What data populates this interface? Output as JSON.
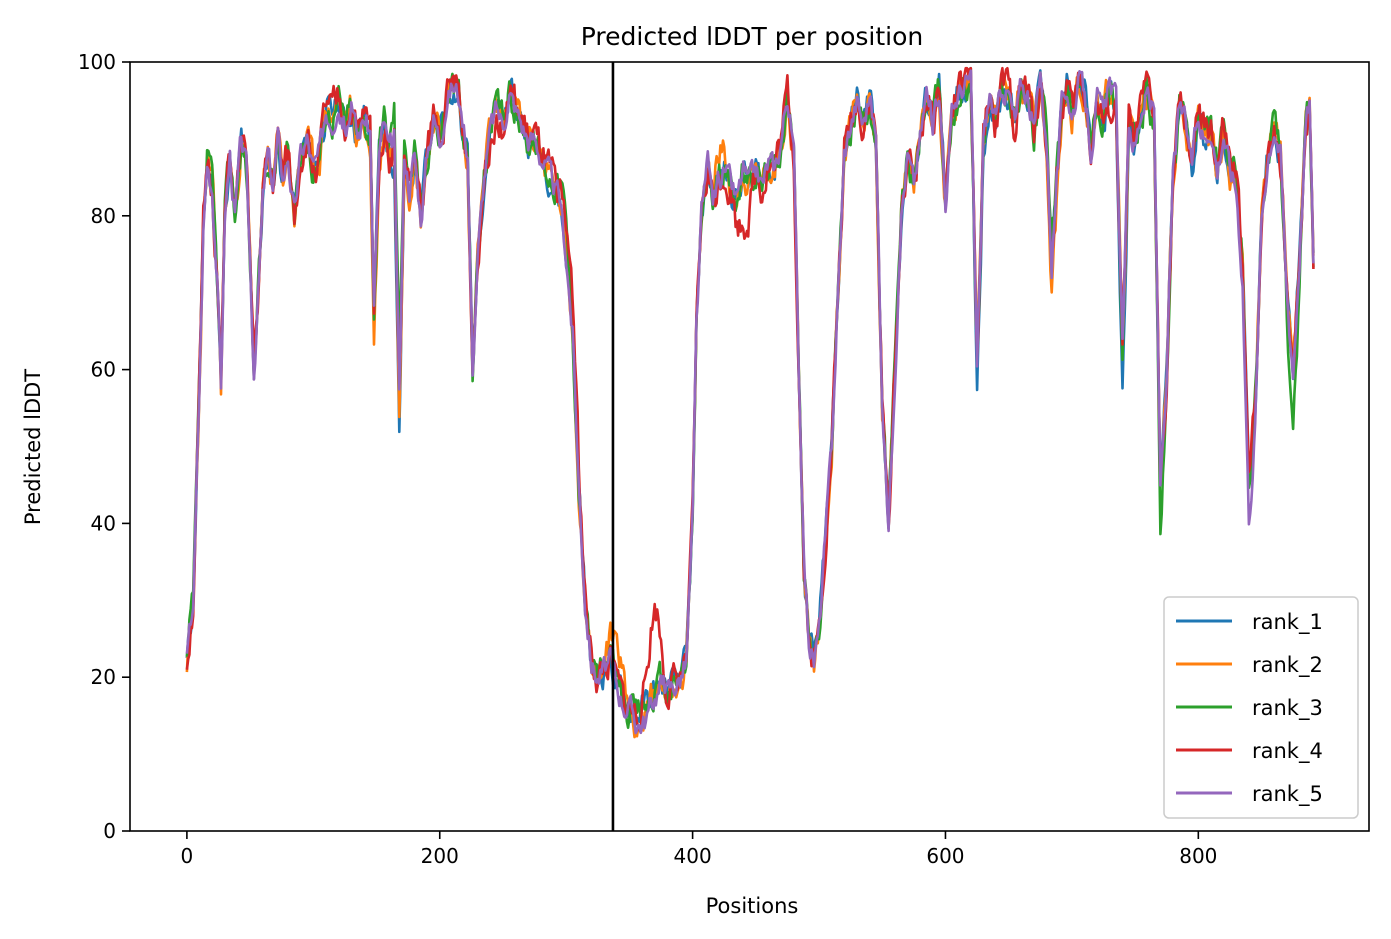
{
  "chart_data": {
    "type": "line",
    "title": "Predicted lDDT per position",
    "xlabel": "Positions",
    "ylabel": "Predicted lDDT",
    "xlim": [
      -45,
      935
    ],
    "ylim": [
      0,
      100
    ],
    "xticks": [
      0,
      200,
      400,
      600,
      800
    ],
    "yticks": [
      0,
      20,
      40,
      60,
      80,
      100
    ],
    "grid": false,
    "legend": "bottom-right",
    "vline": 337,
    "base": [
      [
        0,
        22
      ],
      [
        5,
        30
      ],
      [
        10,
        58
      ],
      [
        13,
        78
      ],
      [
        16,
        87
      ],
      [
        20,
        84
      ],
      [
        24,
        72
      ],
      [
        27,
        58
      ],
      [
        30,
        80
      ],
      [
        34,
        88
      ],
      [
        38,
        80
      ],
      [
        43,
        90
      ],
      [
        47,
        86
      ],
      [
        50,
        74
      ],
      [
        53,
        60
      ],
      [
        57,
        72
      ],
      [
        60,
        82
      ],
      [
        64,
        88
      ],
      [
        68,
        84
      ],
      [
        72,
        90
      ],
      [
        76,
        85
      ],
      [
        80,
        88
      ],
      [
        85,
        80
      ],
      [
        90,
        88
      ],
      [
        95,
        90
      ],
      [
        100,
        86
      ],
      [
        105,
        88
      ],
      [
        110,
        94
      ],
      [
        115,
        93
      ],
      [
        120,
        95
      ],
      [
        125,
        92
      ],
      [
        130,
        94
      ],
      [
        135,
        90
      ],
      [
        140,
        93
      ],
      [
        145,
        91
      ],
      [
        148,
        68
      ],
      [
        152,
        88
      ],
      [
        156,
        92
      ],
      [
        160,
        88
      ],
      [
        164,
        90
      ],
      [
        168,
        56
      ],
      [
        172,
        88
      ],
      [
        176,
        84
      ],
      [
        180,
        88
      ],
      [
        185,
        80
      ],
      [
        190,
        88
      ],
      [
        195,
        93
      ],
      [
        200,
        90
      ],
      [
        205,
        95
      ],
      [
        210,
        97
      ],
      [
        215,
        96
      ],
      [
        218,
        90
      ],
      [
        222,
        88
      ],
      [
        226,
        60
      ],
      [
        230,
        75
      ],
      [
        235,
        85
      ],
      [
        240,
        91
      ],
      [
        245,
        94
      ],
      [
        250,
        92
      ],
      [
        255,
        96
      ],
      [
        260,
        94
      ],
      [
        265,
        92
      ],
      [
        270,
        90
      ],
      [
        275,
        90
      ],
      [
        280,
        88
      ],
      [
        285,
        86
      ],
      [
        290,
        84
      ],
      [
        295,
        82
      ],
      [
        300,
        75
      ],
      [
        305,
        65
      ],
      [
        310,
        45
      ],
      [
        315,
        30
      ],
      [
        320,
        22
      ],
      [
        325,
        20
      ],
      [
        330,
        21
      ],
      [
        335,
        22
      ],
      [
        340,
        19
      ],
      [
        345,
        17
      ],
      [
        350,
        16
      ],
      [
        355,
        15
      ],
      [
        360,
        16
      ],
      [
        365,
        17
      ],
      [
        370,
        18
      ],
      [
        375,
        19
      ],
      [
        380,
        18
      ],
      [
        385,
        19
      ],
      [
        390,
        20
      ],
      [
        395,
        22
      ],
      [
        400,
        40
      ],
      [
        403,
        65
      ],
      [
        407,
        80
      ],
      [
        412,
        86
      ],
      [
        416,
        82
      ],
      [
        420,
        84
      ],
      [
        425,
        86
      ],
      [
        430,
        84
      ],
      [
        435,
        82
      ],
      [
        440,
        86
      ],
      [
        445,
        84
      ],
      [
        450,
        86
      ],
      [
        455,
        84
      ],
      [
        460,
        87
      ],
      [
        465,
        86
      ],
      [
        470,
        90
      ],
      [
        475,
        96
      ],
      [
        480,
        88
      ],
      [
        484,
        60
      ],
      [
        488,
        35
      ],
      [
        492,
        25
      ],
      [
        496,
        22
      ],
      [
        500,
        26
      ],
      [
        505,
        38
      ],
      [
        510,
        50
      ],
      [
        515,
        70
      ],
      [
        520,
        88
      ],
      [
        525,
        92
      ],
      [
        530,
        95
      ],
      [
        535,
        92
      ],
      [
        540,
        96
      ],
      [
        545,
        90
      ],
      [
        550,
        55
      ],
      [
        555,
        40
      ],
      [
        560,
        60
      ],
      [
        565,
        80
      ],
      [
        570,
        88
      ],
      [
        575,
        84
      ],
      [
        580,
        90
      ],
      [
        585,
        96
      ],
      [
        590,
        92
      ],
      [
        595,
        97
      ],
      [
        600,
        82
      ],
      [
        605,
        93
      ],
      [
        610,
        96
      ],
      [
        615,
        97
      ],
      [
        620,
        98
      ],
      [
        625,
        60
      ],
      [
        630,
        90
      ],
      [
        635,
        96
      ],
      [
        640,
        92
      ],
      [
        645,
        97
      ],
      [
        650,
        96
      ],
      [
        655,
        92
      ],
      [
        660,
        97
      ],
      [
        665,
        96
      ],
      [
        670,
        91
      ],
      [
        675,
        98
      ],
      [
        680,
        90
      ],
      [
        684,
        74
      ],
      [
        688,
        85
      ],
      [
        692,
        94
      ],
      [
        696,
        97
      ],
      [
        700,
        93
      ],
      [
        705,
        97
      ],
      [
        710,
        96
      ],
      [
        715,
        89
      ],
      [
        720,
        95
      ],
      [
        725,
        93
      ],
      [
        730,
        97
      ],
      [
        735,
        95
      ],
      [
        740,
        62
      ],
      [
        745,
        92
      ],
      [
        750,
        89
      ],
      [
        755,
        94
      ],
      [
        760,
        96
      ],
      [
        765,
        93
      ],
      [
        770,
        45
      ],
      [
        775,
        60
      ],
      [
        780,
        85
      ],
      [
        785,
        94
      ],
      [
        790,
        92
      ],
      [
        795,
        87
      ],
      [
        800,
        93
      ],
      [
        805,
        90
      ],
      [
        810,
        92
      ],
      [
        815,
        86
      ],
      [
        820,
        91
      ],
      [
        825,
        86
      ],
      [
        830,
        84
      ],
      [
        835,
        74
      ],
      [
        840,
        45
      ],
      [
        845,
        55
      ],
      [
        850,
        80
      ],
      [
        855,
        88
      ],
      [
        860,
        92
      ],
      [
        865,
        88
      ],
      [
        870,
        70
      ],
      [
        875,
        60
      ],
      [
        880,
        75
      ],
      [
        885,
        92
      ],
      [
        888,
        95
      ],
      [
        891,
        74
      ]
    ],
    "series": [
      {
        "name": "rank_1",
        "color": "#1f77b4",
        "amp": 1.6,
        "seed": 11,
        "bumps": [
          [
            168,
            -4
          ],
          [
            740,
            -5
          ],
          [
            627,
            -2
          ]
        ]
      },
      {
        "name": "rank_2",
        "color": "#ff7f0e",
        "amp": 1.8,
        "seed": 23,
        "bumps": [
          [
            148,
            -4
          ],
          [
            340,
            6
          ],
          [
            420,
            4
          ],
          [
            684,
            -5
          ],
          [
            362,
            -2
          ]
        ]
      },
      {
        "name": "rank_3",
        "color": "#2ca02c",
        "amp": 1.8,
        "seed": 37,
        "bumps": [
          [
            168,
            6
          ],
          [
            298,
            4
          ],
          [
            770,
            -6
          ],
          [
            875,
            -8
          ]
        ]
      },
      {
        "name": "rank_4",
        "color": "#d62728",
        "amp": 2.0,
        "seed": 51,
        "bumps": [
          [
            370,
            11
          ],
          [
            440,
            -6
          ],
          [
            305,
            6
          ],
          [
            730,
            -3
          ]
        ]
      },
      {
        "name": "rank_5",
        "color": "#9467bd",
        "amp": 1.4,
        "seed": 67,
        "bumps": [
          [
            840,
            -4
          ],
          [
            362,
            -2
          ]
        ]
      }
    ]
  }
}
